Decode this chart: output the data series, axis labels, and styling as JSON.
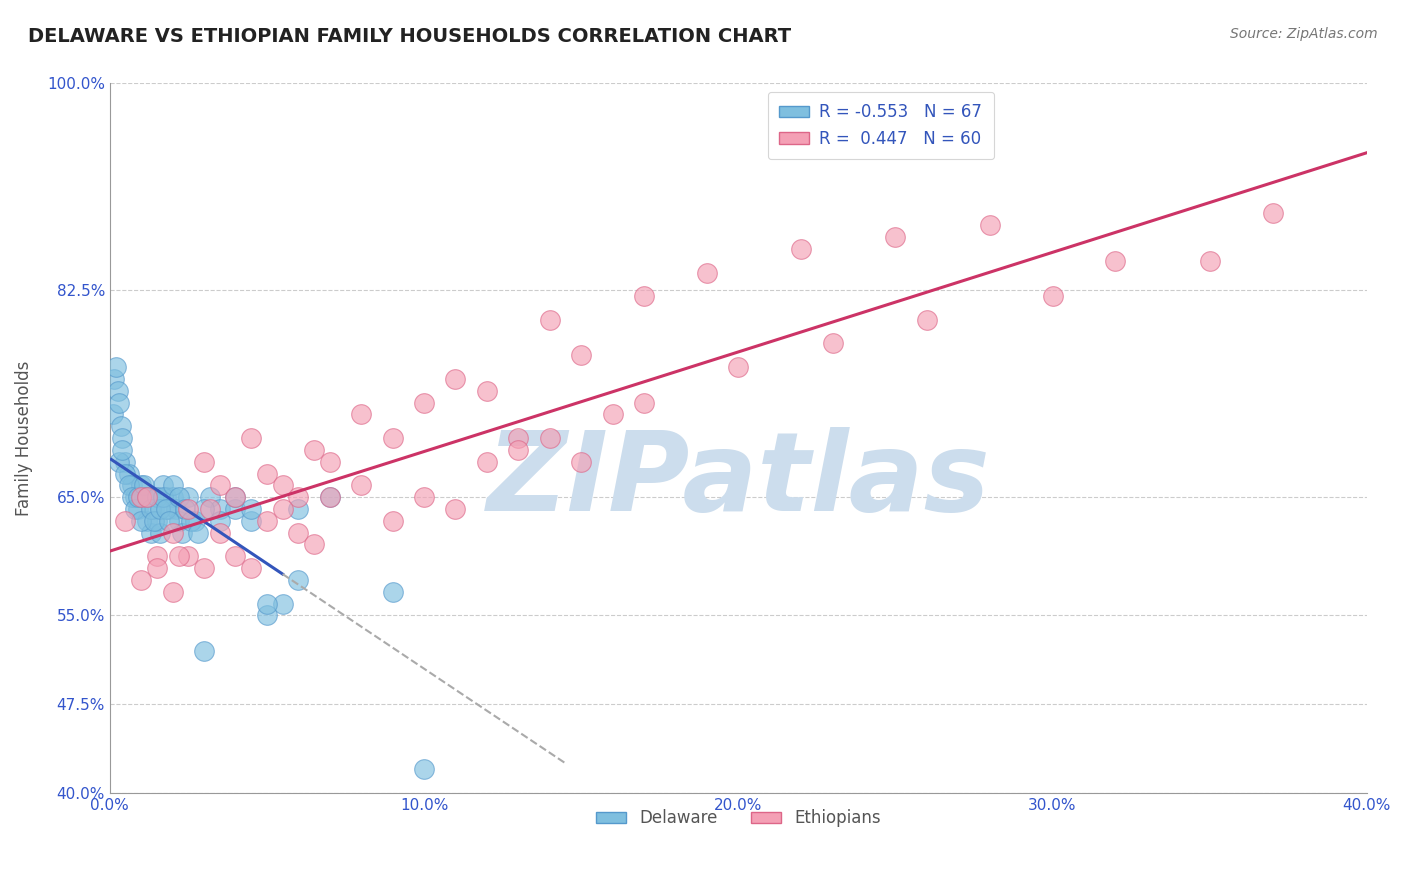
{
  "title": "DELAWARE VS ETHIOPIAN FAMILY HOUSEHOLDS CORRELATION CHART",
  "source": "Source: ZipAtlas.com",
  "ylabel": "Family Households",
  "xlim": [
    0.0,
    40.0
  ],
  "ylim": [
    40.0,
    100.0
  ],
  "xtick_labels": [
    "0.0%",
    "10.0%",
    "20.0%",
    "30.0%",
    "40.0%"
  ],
  "xtick_values": [
    0.0,
    10.0,
    20.0,
    30.0,
    40.0
  ],
  "ytick_labels": [
    "40.0%",
    "47.5%",
    "55.0%",
    "65.0%",
    "82.5%",
    "100.0%"
  ],
  "ytick_values": [
    40.0,
    47.5,
    55.0,
    65.0,
    82.5,
    100.0
  ],
  "delaware_color": "#7fbfdf",
  "delaware_edge": "#5599cc",
  "ethiopian_color": "#f4a0b5",
  "ethiopian_edge": "#dd6688",
  "trend_blue": "#3355bb",
  "trend_pink": "#cc3366",
  "trend_dashed": "#aaaaaa",
  "background": "#ffffff",
  "grid_color": "#cccccc",
  "watermark": "ZIPatlas",
  "watermark_color": "#ccdded",
  "title_color": "#222222",
  "source_color": "#777777",
  "axis_label_color": "#555555",
  "tick_color": "#3355cc",
  "legend_blue_label": "R = -0.553   N = 67",
  "legend_pink_label": "R =  0.447   N = 60",
  "delaware_x": [
    0.1,
    0.15,
    0.2,
    0.25,
    0.3,
    0.35,
    0.4,
    0.5,
    0.6,
    0.7,
    0.8,
    0.9,
    1.0,
    1.1,
    1.2,
    1.3,
    1.4,
    1.5,
    1.6,
    1.7,
    1.8,
    1.9,
    2.0,
    2.1,
    2.2,
    2.3,
    2.5,
    2.7,
    3.0,
    3.2,
    3.5,
    4.0,
    4.5,
    5.0,
    5.5,
    6.0,
    7.0,
    0.3,
    0.4,
    0.5,
    0.6,
    0.7,
    0.8,
    0.9,
    1.0,
    1.1,
    1.2,
    1.3,
    1.4,
    1.5,
    1.6,
    1.7,
    1.8,
    1.9,
    2.0,
    2.2,
    2.4,
    2.6,
    2.8,
    3.0,
    3.5,
    4.0,
    4.5,
    5.0,
    6.0,
    9.0,
    10.0
  ],
  "delaware_y": [
    72,
    75,
    76,
    74,
    73,
    71,
    70,
    68,
    67,
    66,
    65,
    64,
    66,
    65,
    63,
    62,
    64,
    63,
    62,
    66,
    65,
    64,
    65,
    64,
    63,
    62,
    65,
    63,
    52,
    65,
    64,
    64,
    63,
    55,
    56,
    64,
    65,
    68,
    69,
    67,
    66,
    65,
    64,
    65,
    63,
    66,
    65,
    64,
    63,
    65,
    64,
    65,
    64,
    63,
    66,
    65,
    64,
    63,
    62,
    64,
    63,
    65,
    64,
    56,
    58,
    57,
    42
  ],
  "ethiopian_x": [
    0.5,
    1.0,
    1.5,
    2.0,
    2.5,
    3.0,
    3.5,
    4.0,
    4.5,
    5.0,
    5.5,
    6.0,
    6.5,
    7.0,
    8.0,
    9.0,
    10.0,
    11.0,
    12.0,
    13.0,
    14.0,
    15.0,
    17.0,
    19.0,
    22.0,
    25.0,
    28.0,
    32.0,
    37.0,
    1.0,
    1.5,
    2.0,
    2.5,
    3.0,
    3.5,
    4.0,
    4.5,
    5.0,
    5.5,
    6.0,
    6.5,
    7.0,
    8.0,
    9.0,
    10.0,
    11.0,
    12.0,
    13.0,
    14.0,
    15.0,
    16.0,
    17.0,
    20.0,
    23.0,
    26.0,
    30.0,
    35.0,
    1.2,
    2.2,
    3.2
  ],
  "ethiopian_y": [
    63,
    65,
    60,
    62,
    64,
    68,
    66,
    65,
    70,
    67,
    66,
    65,
    69,
    68,
    72,
    70,
    73,
    75,
    74,
    70,
    80,
    77,
    82,
    84,
    86,
    87,
    88,
    85,
    89,
    58,
    59,
    57,
    60,
    59,
    62,
    60,
    59,
    63,
    64,
    62,
    61,
    65,
    66,
    63,
    65,
    64,
    68,
    69,
    70,
    68,
    72,
    73,
    76,
    78,
    80,
    82,
    85,
    65,
    60,
    64
  ]
}
